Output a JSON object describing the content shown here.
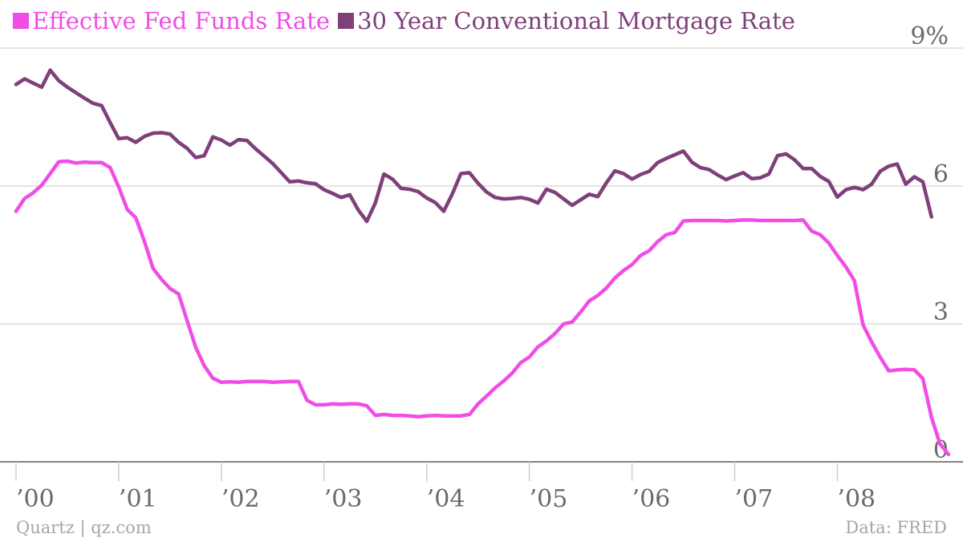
{
  "legend": {
    "items": [
      {
        "label": "Effective Fed Funds Rate",
        "color": "#f14de6"
      },
      {
        "label": "30 Year Conventional Mortgage Rate",
        "color": "#7e3f7a"
      }
    ]
  },
  "footer": {
    "source_left": "Quartz | qz.com",
    "source_right": "Data: FRED"
  },
  "chart_data": {
    "type": "line",
    "x_start": "2000-01",
    "x_frequency": "monthly",
    "xlim": [
      "2000-01",
      "2008-12"
    ],
    "ylim": [
      0,
      9
    ],
    "grid": true,
    "legend_position": "top-left",
    "x_ticks": [
      "’00",
      "’01",
      "’02",
      "’03",
      "’04",
      "’05",
      "’06",
      "’07",
      "’08"
    ],
    "y_ticks": [
      {
        "value": 0,
        "label": "0"
      },
      {
        "value": 3,
        "label": "3"
      },
      {
        "value": 6,
        "label": "6"
      },
      {
        "value": 9,
        "label": "9%"
      }
    ],
    "series": [
      {
        "name": "Effective Fed Funds Rate",
        "color": "#f14de6",
        "values": [
          5.45,
          5.73,
          5.85,
          6.02,
          6.27,
          6.53,
          6.54,
          6.5,
          6.52,
          6.51,
          6.51,
          6.4,
          5.98,
          5.49,
          5.31,
          4.8,
          4.21,
          3.97,
          3.77,
          3.65,
          3.07,
          2.49,
          2.09,
          1.82,
          1.73,
          1.74,
          1.73,
          1.75,
          1.75,
          1.75,
          1.73,
          1.74,
          1.75,
          1.75,
          1.34,
          1.24,
          1.24,
          1.26,
          1.25,
          1.26,
          1.26,
          1.22,
          1.01,
          1.03,
          1.01,
          1.01,
          1.0,
          0.98,
          1.0,
          1.01,
          1.0,
          1.0,
          1.0,
          1.03,
          1.26,
          1.43,
          1.61,
          1.76,
          1.93,
          2.16,
          2.28,
          2.5,
          2.63,
          2.79,
          3.0,
          3.04,
          3.26,
          3.5,
          3.62,
          3.78,
          4.0,
          4.16,
          4.29,
          4.49,
          4.59,
          4.79,
          4.94,
          4.99,
          5.24,
          5.25,
          5.25,
          5.25,
          5.25,
          5.24,
          5.25,
          5.26,
          5.26,
          5.25,
          5.25,
          5.25,
          5.25,
          5.25,
          5.26,
          5.02,
          4.94,
          4.76,
          4.49,
          4.24,
          3.94,
          2.98,
          2.61,
          2.28,
          1.98,
          2.0,
          2.01,
          2.0,
          1.81,
          0.97,
          0.39,
          0.16
        ]
      },
      {
        "name": "30 Year Conventional Mortgage Rate",
        "color": "#7e3f7a",
        "values": [
          8.21,
          8.33,
          8.24,
          8.15,
          8.52,
          8.29,
          8.15,
          8.03,
          7.91,
          7.8,
          7.75,
          7.38,
          7.03,
          7.05,
          6.95,
          7.08,
          7.15,
          7.16,
          7.13,
          6.95,
          6.82,
          6.62,
          6.66,
          7.07,
          7.0,
          6.89,
          7.01,
          6.99,
          6.81,
          6.65,
          6.49,
          6.29,
          6.09,
          6.11,
          6.07,
          6.05,
          5.92,
          5.84,
          5.75,
          5.81,
          5.48,
          5.23,
          5.63,
          6.26,
          6.15,
          5.95,
          5.93,
          5.88,
          5.74,
          5.64,
          5.45,
          5.83,
          6.27,
          6.29,
          6.06,
          5.87,
          5.75,
          5.72,
          5.73,
          5.75,
          5.71,
          5.63,
          5.93,
          5.86,
          5.72,
          5.58,
          5.7,
          5.82,
          5.77,
          6.07,
          6.33,
          6.27,
          6.15,
          6.25,
          6.32,
          6.51,
          6.6,
          6.68,
          6.76,
          6.52,
          6.4,
          6.36,
          6.24,
          6.14,
          6.22,
          6.29,
          6.16,
          6.18,
          6.26,
          6.66,
          6.7,
          6.57,
          6.38,
          6.38,
          6.21,
          6.1,
          5.76,
          5.92,
          5.97,
          5.92,
          6.04,
          6.32,
          6.43,
          6.48,
          6.04,
          6.2,
          6.09,
          5.33
        ]
      }
    ]
  }
}
